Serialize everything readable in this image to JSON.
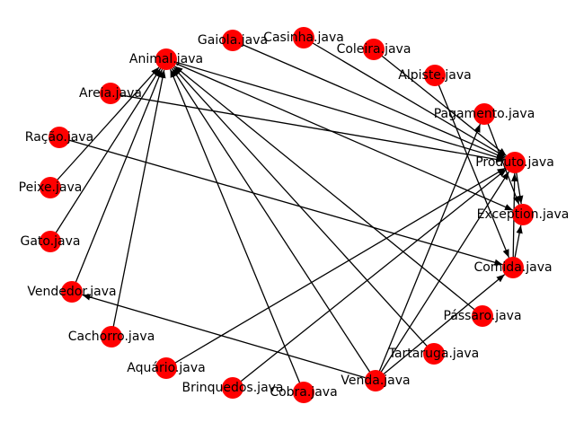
{
  "colors": {
    "node": "#ff0000",
    "edge": "#000000",
    "background": "#ffffff"
  },
  "nodes": [
    {
      "id": "animal",
      "label": "Animal.java"
    },
    {
      "id": "gaiola",
      "label": "Gaiola.java"
    },
    {
      "id": "casinha",
      "label": "Casinha.java"
    },
    {
      "id": "coleira",
      "label": "Coleira.java"
    },
    {
      "id": "alpiste",
      "label": "Alpiste.java"
    },
    {
      "id": "pagamento",
      "label": "Pagamento.java"
    },
    {
      "id": "produto",
      "label": "Produto.java"
    },
    {
      "id": "exception",
      "label": "Exception.java"
    },
    {
      "id": "comida",
      "label": "Comida.java"
    },
    {
      "id": "passaro",
      "label": "Pássaro.java"
    },
    {
      "id": "tartaruga",
      "label": "Tartaruga.java"
    },
    {
      "id": "venda",
      "label": "Venda.java"
    },
    {
      "id": "cobra",
      "label": "Cobra.java"
    },
    {
      "id": "brinquedos",
      "label": "Brinquedos.java"
    },
    {
      "id": "aquario",
      "label": "Aquário.java"
    },
    {
      "id": "cachorro",
      "label": "Cachorro.java"
    },
    {
      "id": "vendedor",
      "label": "Vendedor.java"
    },
    {
      "id": "gato",
      "label": "Gato.java"
    },
    {
      "id": "peixe",
      "label": "Peixe.java"
    },
    {
      "id": "racao",
      "label": "Ração.java"
    },
    {
      "id": "areia",
      "label": "Areia.java"
    }
  ],
  "edges": [
    [
      "gaiola",
      "produto"
    ],
    [
      "casinha",
      "produto"
    ],
    [
      "coleira",
      "produto"
    ],
    [
      "alpiste",
      "comida"
    ],
    [
      "areia",
      "produto"
    ],
    [
      "racao",
      "comida"
    ],
    [
      "peixe",
      "animal"
    ],
    [
      "gato",
      "animal"
    ],
    [
      "cachorro",
      "animal"
    ],
    [
      "vendedor",
      "animal"
    ],
    [
      "aquario",
      "produto"
    ],
    [
      "brinquedos",
      "produto"
    ],
    [
      "cobra",
      "animal"
    ],
    [
      "venda",
      "animal"
    ],
    [
      "venda",
      "vendedor"
    ],
    [
      "venda",
      "pagamento"
    ],
    [
      "venda",
      "produto"
    ],
    [
      "venda",
      "comida"
    ],
    [
      "tartaruga",
      "animal"
    ],
    [
      "passaro",
      "animal"
    ],
    [
      "animal",
      "produto"
    ],
    [
      "animal",
      "exception"
    ],
    [
      "pagamento",
      "exception"
    ],
    [
      "produto",
      "exception"
    ],
    [
      "comida",
      "produto"
    ],
    [
      "comida",
      "exception"
    ]
  ]
}
